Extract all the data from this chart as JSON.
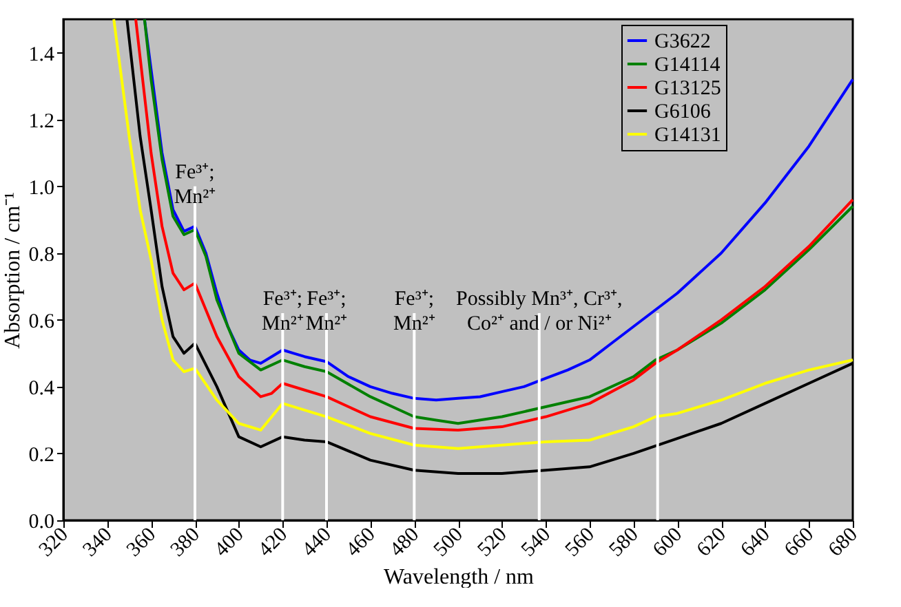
{
  "chart_data": {
    "type": "line",
    "xlabel": "Wavelength / nm",
    "ylabel": "Absorption / cm⁻¹",
    "xlim": [
      320,
      680
    ],
    "xticks": [
      320,
      340,
      360,
      380,
      400,
      420,
      440,
      460,
      480,
      500,
      520,
      540,
      560,
      580,
      600,
      620,
      640,
      660,
      680
    ],
    "ylim": [
      0,
      1.5
    ],
    "yticks": [
      {
        "value": 0,
        "label": "0.0"
      },
      {
        "value": 0.2,
        "label": "0.2"
      },
      {
        "value": 0.4,
        "label": "0.4"
      },
      {
        "value": 0.6,
        "label": "0.6"
      },
      {
        "value": 0.8,
        "label": "0.8"
      },
      {
        "value": 1.0,
        "label": "1.0"
      },
      {
        "value": 1.2,
        "label": "1.2"
      },
      {
        "value": 1.4,
        "label": "1.4"
      }
    ],
    "grid": false,
    "legend": "top right",
    "marker": "none",
    "line_style": "solid",
    "series": [
      {
        "name": "G3622",
        "color": "#0000ff",
        "x": [
          357,
          360,
          365,
          370,
          375,
          380,
          385,
          390,
          395,
          400,
          405,
          410,
          415,
          420,
          425,
          430,
          440,
          450,
          460,
          470,
          480,
          490,
          500,
          510,
          520,
          530,
          540,
          550,
          560,
          570,
          580,
          590,
          600,
          620,
          640,
          660,
          680
        ],
        "values": [
          1.5,
          1.35,
          1.1,
          0.93,
          0.865,
          0.88,
          0.8,
          0.68,
          0.58,
          0.51,
          0.48,
          0.47,
          0.49,
          0.51,
          0.5,
          0.49,
          0.475,
          0.43,
          0.4,
          0.38,
          0.365,
          0.36,
          0.365,
          0.37,
          0.385,
          0.4,
          0.425,
          0.45,
          0.48,
          0.53,
          0.58,
          0.63,
          0.68,
          0.8,
          0.95,
          1.12,
          1.32
        ]
      },
      {
        "name": "G14114",
        "color": "#008000",
        "x": [
          357,
          360,
          365,
          370,
          375,
          380,
          385,
          390,
          400,
          410,
          420,
          430,
          440,
          460,
          480,
          490,
          500,
          520,
          540,
          560,
          580,
          590,
          600,
          620,
          640,
          660,
          680
        ],
        "values": [
          1.5,
          1.32,
          1.08,
          0.91,
          0.855,
          0.87,
          0.79,
          0.66,
          0.5,
          0.45,
          0.48,
          0.46,
          0.445,
          0.37,
          0.31,
          0.3,
          0.29,
          0.31,
          0.34,
          0.37,
          0.43,
          0.48,
          0.51,
          0.59,
          0.69,
          0.81,
          0.94
        ]
      },
      {
        "name": "G13125",
        "color": "#ff0000",
        "x": [
          353,
          360,
          365,
          370,
          375,
          380,
          390,
          400,
          410,
          415,
          420,
          430,
          440,
          460,
          480,
          500,
          520,
          540,
          560,
          580,
          590,
          600,
          620,
          640,
          660,
          680
        ],
        "values": [
          1.5,
          1.1,
          0.88,
          0.74,
          0.69,
          0.71,
          0.55,
          0.43,
          0.37,
          0.38,
          0.41,
          0.39,
          0.37,
          0.31,
          0.275,
          0.27,
          0.28,
          0.31,
          0.35,
          0.42,
          0.47,
          0.51,
          0.6,
          0.7,
          0.82,
          0.96
        ]
      },
      {
        "name": "G6106",
        "color": "#000000",
        "x": [
          349,
          355,
          360,
          365,
          370,
          375,
          380,
          390,
          400,
          410,
          420,
          430,
          440,
          460,
          480,
          500,
          520,
          540,
          560,
          580,
          600,
          620,
          640,
          660,
          680
        ],
        "values": [
          1.5,
          1.15,
          0.93,
          0.7,
          0.55,
          0.5,
          0.53,
          0.4,
          0.25,
          0.22,
          0.25,
          0.24,
          0.235,
          0.18,
          0.15,
          0.14,
          0.14,
          0.15,
          0.16,
          0.2,
          0.245,
          0.29,
          0.35,
          0.41,
          0.47
        ]
      },
      {
        "name": "G14131",
        "color": "#ffff00",
        "x": [
          343,
          350,
          355,
          360,
          365,
          370,
          375,
          380,
          390,
          400,
          410,
          420,
          430,
          440,
          460,
          480,
          500,
          520,
          540,
          560,
          580,
          590,
          600,
          620,
          640,
          660,
          680
        ],
        "values": [
          1.5,
          1.15,
          0.93,
          0.78,
          0.6,
          0.48,
          0.445,
          0.455,
          0.36,
          0.29,
          0.27,
          0.35,
          0.33,
          0.31,
          0.26,
          0.225,
          0.215,
          0.225,
          0.235,
          0.24,
          0.28,
          0.31,
          0.32,
          0.36,
          0.41,
          0.45,
          0.48
        ]
      }
    ],
    "ref_lines": [
      {
        "axis": "x",
        "value": 380,
        "color": "#ffffff"
      },
      {
        "axis": "x",
        "value": 420,
        "color": "#ffffff"
      },
      {
        "axis": "x",
        "value": 440,
        "color": "#ffffff"
      },
      {
        "axis": "x",
        "value": 480,
        "color": "#ffffff"
      },
      {
        "axis": "x",
        "value": 537,
        "color": "#ffffff"
      },
      {
        "axis": "x",
        "value": 591,
        "color": "#ffffff"
      }
    ],
    "annotations": [
      {
        "text": "Fe³⁺;\nMn²⁺",
        "x": 380,
        "y": 1.0
      },
      {
        "text": "Fe³⁺;\nMn²⁺",
        "x": 420,
        "y": 0.62
      },
      {
        "text": "Fe³⁺;\nMn²⁺",
        "x": 440,
        "y": 0.62
      },
      {
        "text": "Fe³⁺;\nMn²⁺",
        "x": 480,
        "y": 0.62
      },
      {
        "text": "Possibly Mn³⁺, Cr³⁺,\nCo²⁺ and / or Ni²⁺",
        "x": 537,
        "y": 0.62
      }
    ]
  }
}
